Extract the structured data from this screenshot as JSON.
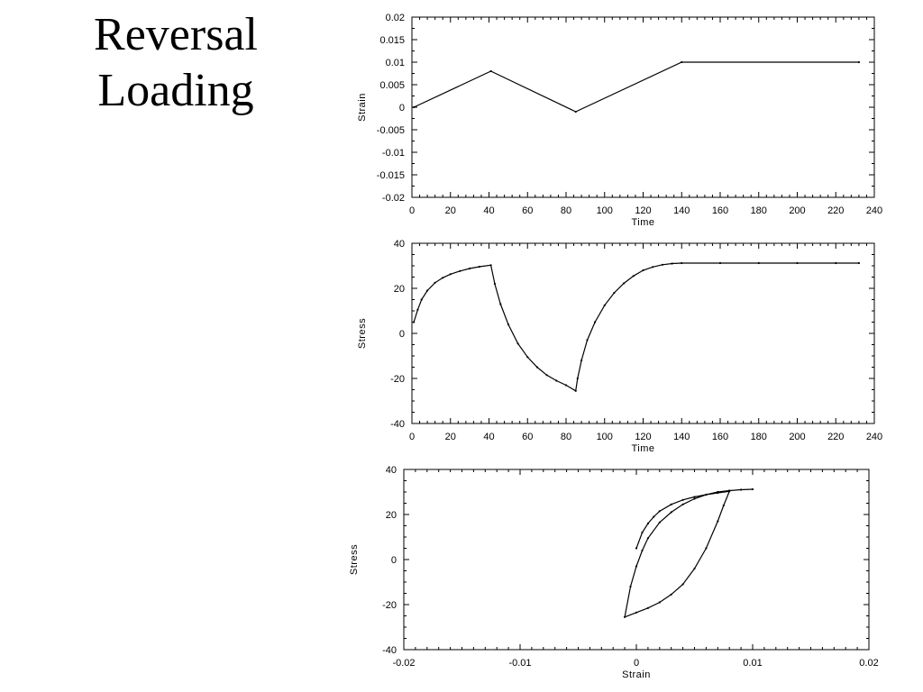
{
  "slide": {
    "title_line1": "Reversal",
    "title_line2": "Loading"
  },
  "chart_data": [
    {
      "type": "line",
      "title": "",
      "xlabel": "Time",
      "ylabel": "Strain",
      "xlim": [
        0,
        240
      ],
      "ylim": [
        -0.02,
        0.02
      ],
      "xticks": [
        "0",
        "20",
        "40",
        "60",
        "80",
        "100",
        "120",
        "140",
        "160",
        "180",
        "200",
        "220",
        "240"
      ],
      "yticks": [
        "-0.02",
        "-0.015",
        "-0.01",
        "-0.005",
        "0",
        "0.005",
        "0.01",
        "0.015",
        "0.02"
      ],
      "grid": false,
      "series": [
        {
          "x": [
            1,
            41,
            85,
            140,
            232
          ],
          "y": [
            0,
            0.008,
            -0.001,
            0.01,
            0.01
          ]
        }
      ]
    },
    {
      "type": "line",
      "title": "",
      "xlabel": "Time",
      "ylabel": "Stress",
      "xlim": [
        0,
        240
      ],
      "ylim": [
        -40,
        40
      ],
      "xticks": [
        "0",
        "20",
        "40",
        "60",
        "80",
        "100",
        "120",
        "140",
        "160",
        "180",
        "200",
        "220",
        "240"
      ],
      "yticks": [
        "-40",
        "-20",
        "0",
        "20",
        "40"
      ],
      "grid": false,
      "series": [
        {
          "x": [
            1,
            3,
            5,
            8,
            12,
            16,
            20,
            25,
            30,
            35,
            41,
            43,
            46,
            50,
            55,
            60,
            65,
            70,
            75,
            80,
            85,
            86,
            88,
            91,
            95,
            100,
            105,
            110,
            115,
            120,
            125,
            130,
            135,
            140,
            160,
            180,
            200,
            220,
            232
          ],
          "y": [
            5,
            10.5,
            15,
            19,
            22.5,
            24.7,
            26.3,
            27.7,
            28.8,
            29.6,
            30.3,
            22,
            13,
            4,
            -4.5,
            -10.5,
            -15,
            -18.5,
            -21,
            -23,
            -25.5,
            -20,
            -12,
            -3,
            5,
            12.5,
            18,
            22.2,
            25.5,
            28,
            29.5,
            30.5,
            31,
            31.2,
            31.2,
            31.2,
            31.2,
            31.2,
            31.2
          ]
        }
      ]
    },
    {
      "type": "line",
      "title": "",
      "xlabel": "Strain",
      "ylabel": "Stress",
      "xlim": [
        -0.02,
        0.02
      ],
      "ylim": [
        -40,
        40
      ],
      "xticks": [
        "-0.02",
        "-0.01",
        "0",
        "0.01",
        "0.02"
      ],
      "yticks": [
        "-40",
        "-20",
        "0",
        "20",
        "40"
      ],
      "grid": false,
      "series": [
        {
          "x": [
            0,
            0.0005,
            0.001,
            0.0015,
            0.002,
            0.003,
            0.004,
            0.005,
            0.006,
            0.007,
            0.008,
            0.0075,
            0.007,
            0.006,
            0.005,
            0.004,
            0.003,
            0.002,
            0.001,
            0,
            -0.001,
            -0.0005,
            0,
            0.0005,
            0.001,
            0.002,
            0.003,
            0.004,
            0.005,
            0.006,
            0.007,
            0.008,
            0.009,
            0.01
          ],
          "y": [
            5,
            12,
            16,
            19,
            21.5,
            24.5,
            26.5,
            27.8,
            28.8,
            29.6,
            30.3,
            24,
            17,
            5,
            -4,
            -11,
            -15.5,
            -19,
            -21.5,
            -23.5,
            -25.5,
            -12,
            -3,
            4,
            9.5,
            16.5,
            21,
            24.5,
            27,
            28.8,
            30,
            30.6,
            31,
            31.2
          ]
        }
      ]
    }
  ]
}
